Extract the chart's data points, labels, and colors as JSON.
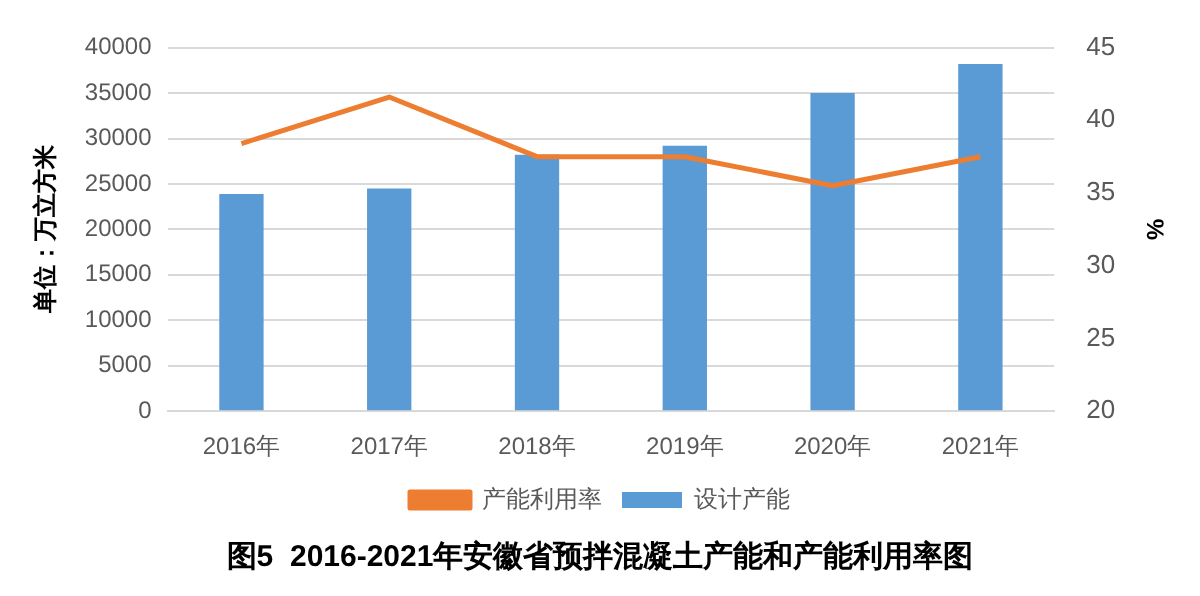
{
  "chart_data": {
    "type": "bar",
    "title": "图5  2016-2021年安徽省预拌混凝土产能和产能利用率图",
    "ylabel": "单位：万立方米",
    "y2label": "%",
    "categories": [
      "2016年",
      "2017年",
      "2018年",
      "2019年",
      "2020年",
      "2021年"
    ],
    "series": [
      {
        "name": "设计产能",
        "color": "#5b9bd5",
        "values": [
          23900,
          24500,
          28200,
          29200,
          35000,
          38200
        ]
      },
      {
        "name": "产能利用率",
        "type": "line",
        "axis": "y2",
        "color": "#ed7d31",
        "values": [
          38.4,
          41.6,
          37.5,
          37.5,
          35.5,
          37.5
        ]
      }
    ],
    "ylim": [
      0,
      40000
    ],
    "yticks": [
      0,
      5000,
      10000,
      15000,
      20000,
      25000,
      30000,
      35000,
      40000
    ],
    "y2lim": [
      20,
      45
    ],
    "y2ticks": [
      20,
      25,
      30,
      35,
      40,
      45
    ],
    "grid": "y",
    "legend": "bottom",
    "marker": "none"
  }
}
